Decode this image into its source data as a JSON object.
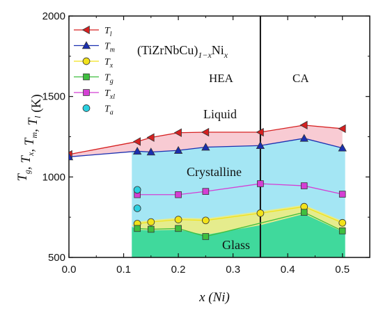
{
  "chart_data": {
    "type": "line",
    "xlabel": "x (Ni)",
    "ylabel": "Tg, Tx, Tm, Tl (K)",
    "xlim": [
      0.0,
      0.55
    ],
    "ylim": [
      500,
      2000
    ],
    "xticks": [
      0.0,
      0.1,
      0.2,
      0.3,
      0.4,
      0.5
    ],
    "xtick_labels": [
      "0.0",
      "0.1",
      "0.2",
      "0.3",
      "0.4",
      "0.5"
    ],
    "yticks": [
      500,
      1000,
      1500,
      2000
    ],
    "ytick_labels": [
      "500",
      "1000",
      "1500",
      "2000"
    ],
    "legend_position": "top-left",
    "divider_x": 0.35,
    "series": [
      {
        "name": "Tl",
        "base": "T",
        "sub": "l",
        "marker": "triangle-left",
        "color": "#d62020",
        "x": [
          0.0,
          0.125,
          0.15,
          0.2,
          0.25,
          0.35,
          0.43,
          0.5
        ],
        "y": [
          1140,
          1220,
          1245,
          1275,
          1278,
          1278,
          1322,
          1300
        ]
      },
      {
        "name": "Tm",
        "base": "T",
        "sub": "m",
        "marker": "triangle-up",
        "color": "#1a2fb0",
        "x": [
          0.0,
          0.125,
          0.15,
          0.2,
          0.25,
          0.35,
          0.43,
          0.5
        ],
        "y": [
          1125,
          1160,
          1155,
          1165,
          1185,
          1195,
          1240,
          1180
        ]
      },
      {
        "name": "Tx",
        "base": "T",
        "sub": "x",
        "marker": "circle",
        "color": "#f2e21a",
        "x": [
          0.125,
          0.15,
          0.2,
          0.25,
          0.35,
          0.43,
          0.5
        ],
        "y": [
          710,
          720,
          735,
          730,
          775,
          815,
          715
        ]
      },
      {
        "name": "Tg",
        "base": "T",
        "sub": "g",
        "marker": "square",
        "color": "#3fbf3f",
        "x": [
          0.125,
          0.15,
          0.2,
          0.25,
          0.43,
          0.5
        ],
        "y": [
          680,
          675,
          680,
          630,
          780,
          665
        ]
      },
      {
        "name": "Txl",
        "base": "T",
        "sub": "xl",
        "marker": "square",
        "color": "#d43fd4",
        "x": [
          0.125,
          0.2,
          0.25,
          0.35,
          0.43,
          0.5
        ],
        "y": [
          890,
          890,
          910,
          958,
          945,
          893
        ]
      },
      {
        "name": "Ta",
        "base": "T",
        "sub": "a",
        "marker": "circle",
        "color": "#2ad0e0",
        "x": [
          0.125,
          0.125
        ],
        "y": [
          920,
          805
        ]
      }
    ],
    "annotations": {
      "formula": {
        "main": "(TiZrNbCu)",
        "sub1": "1−x",
        "mid": "Ni",
        "sub2": "x"
      },
      "hea": "HEA",
      "ca": "CA",
      "liquid": "Liquid",
      "crystalline": "Crystalline",
      "glass": "Glass"
    },
    "ylabel_parts": [
      {
        "t": "T",
        "s": "g"
      },
      {
        "t": ", T",
        "s": "x"
      },
      {
        "t": ", T",
        "s": "m"
      },
      {
        "t": ", T",
        "s": "l"
      },
      {
        "t": " (K)",
        "s": ""
      }
    ]
  }
}
